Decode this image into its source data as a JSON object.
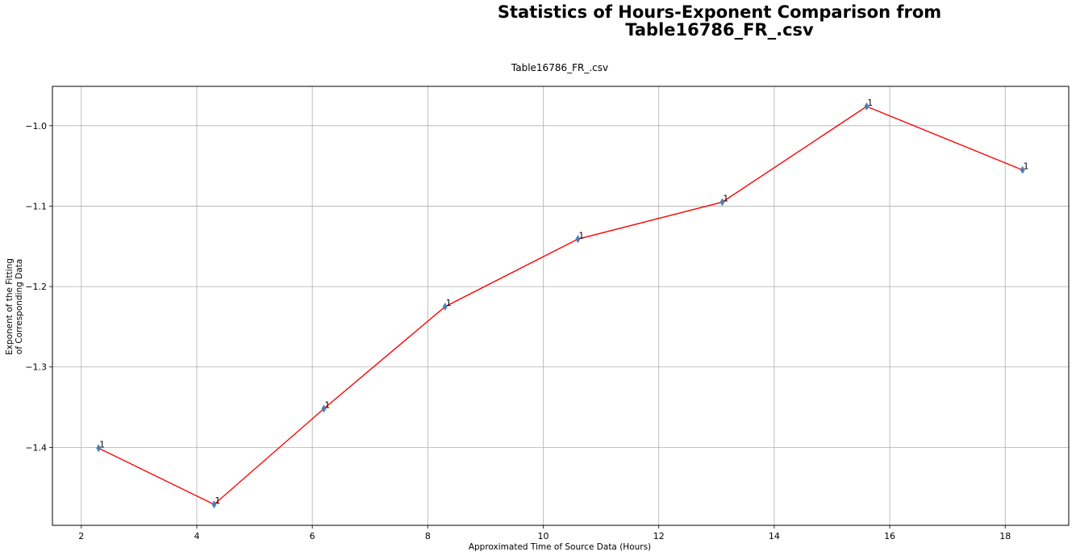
{
  "chart_data": {
    "type": "line",
    "title_lines": [
      "Statistics of Hours-Exponent Comparison from",
      "Table16786_FR_.csv"
    ],
    "subtitle": "Table16786_FR_.csv",
    "xlabel": "Approximated Time of Source Data (Hours)",
    "ylabel_lines": [
      "Exponent of the Fitting",
      "of Corresponding Data"
    ],
    "xlim": [
      1.5,
      19.1
    ],
    "ylim": [
      -1.497,
      -0.951
    ],
    "xticks": [
      2,
      4,
      6,
      8,
      10,
      12,
      14,
      16,
      18
    ],
    "yticks": [
      -1.4,
      -1.3,
      -1.2,
      -1.1,
      -1.0
    ],
    "ytick_labels": [
      "−1.4",
      "−1.3",
      "−1.2",
      "−1.1",
      "−1.0"
    ],
    "grid": true,
    "line_color": "#ff0000",
    "marker_color": "#4a7fb5",
    "points": [
      {
        "x": 2.3,
        "y": -1.401,
        "label": "1"
      },
      {
        "x": 4.3,
        "y": -1.471,
        "label": "1"
      },
      {
        "x": 6.2,
        "y": -1.352,
        "label": "1"
      },
      {
        "x": 8.3,
        "y": -1.225,
        "label": "1"
      },
      {
        "x": 10.6,
        "y": -1.141,
        "label": "1"
      },
      {
        "x": 13.1,
        "y": -1.095,
        "label": "1"
      },
      {
        "x": 15.6,
        "y": -0.976,
        "label": "1"
      },
      {
        "x": 18.3,
        "y": -1.055,
        "label": "1"
      }
    ]
  }
}
